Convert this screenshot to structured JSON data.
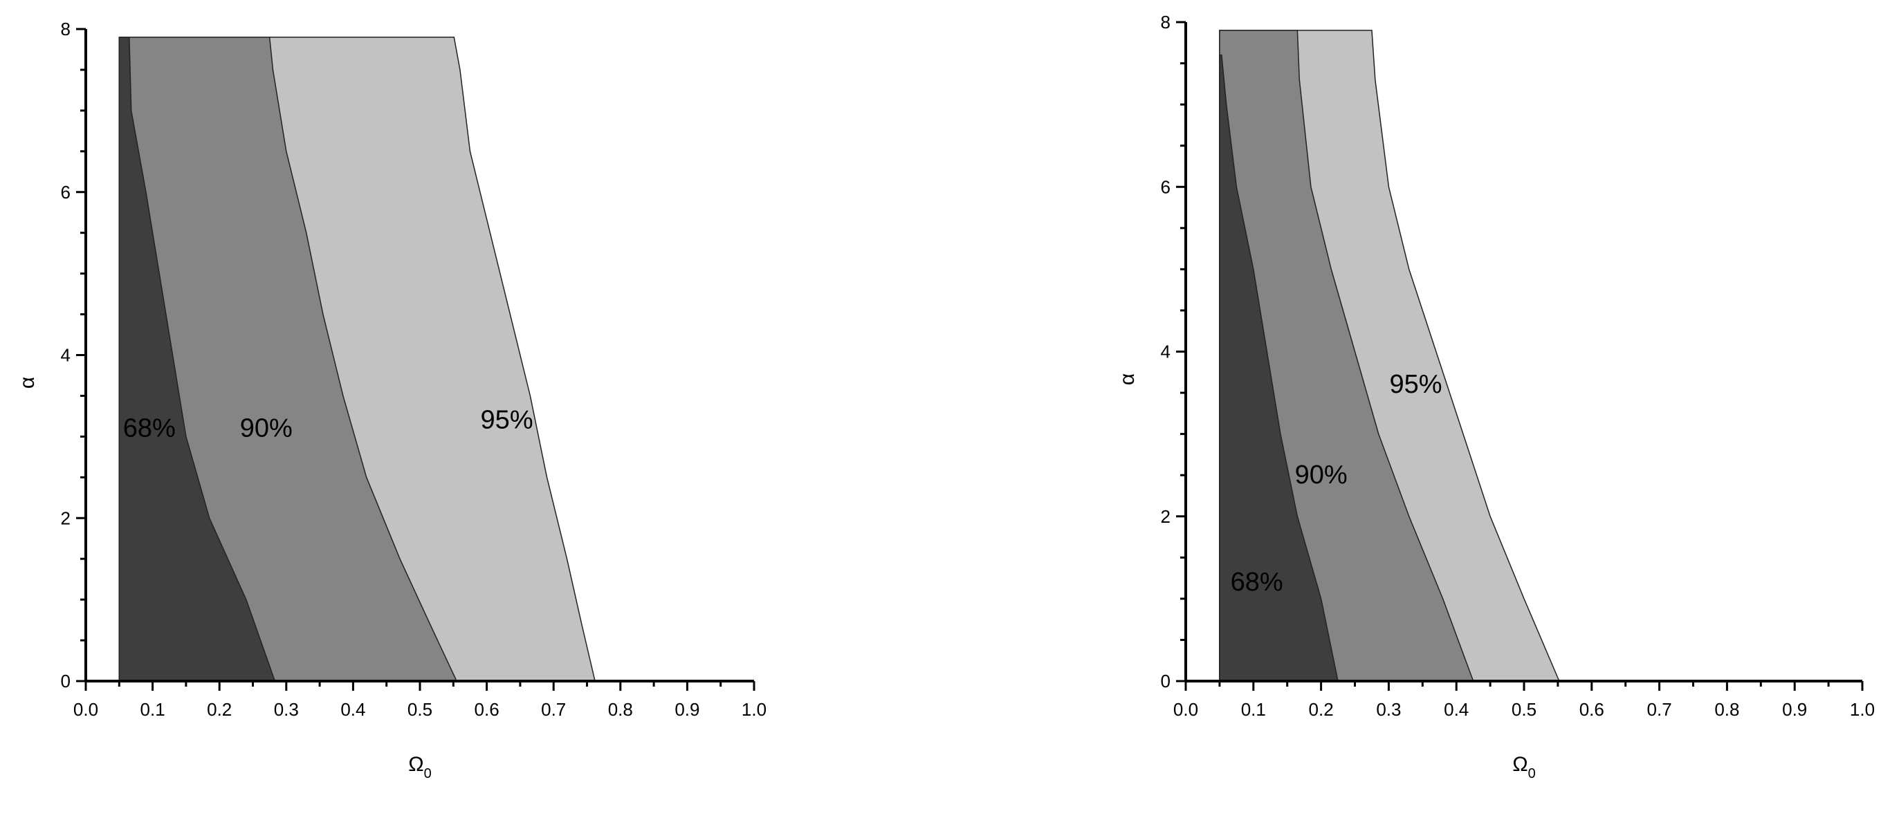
{
  "chart_data": [
    {
      "type": "area",
      "xlabel": "Ω",
      "xlabel_sub": "0",
      "ylabel": "α",
      "xlim": [
        0.0,
        1.0
      ],
      "ylim": [
        0,
        8
      ],
      "xticks": [
        "0.0",
        "0.1",
        "0.2",
        "0.3",
        "0.4",
        "0.5",
        "0.6",
        "0.7",
        "0.8",
        "0.9",
        "1.0"
      ],
      "yticks": [
        "0",
        "2",
        "4",
        "6",
        "8"
      ],
      "x_left_edge": 0.05,
      "regions": [
        {
          "name": "95%",
          "color": "#c2c2c2",
          "label_at": [
            0.63,
            3.1
          ],
          "right_boundary": [
            [
              0.551,
              7.9
            ],
            [
              0.56,
              7.5
            ],
            [
              0.575,
              6.5
            ],
            [
              0.605,
              5.5
            ],
            [
              0.635,
              4.5
            ],
            [
              0.665,
              3.5
            ],
            [
              0.69,
              2.5
            ],
            [
              0.72,
              1.5
            ],
            [
              0.742,
              0.7
            ],
            [
              0.762,
              0
            ]
          ]
        },
        {
          "name": "90%",
          "color": "#858585",
          "label_at": [
            0.27,
            3.0
          ],
          "right_boundary": [
            [
              0.275,
              7.9
            ],
            [
              0.28,
              7.5
            ],
            [
              0.3,
              6.5
            ],
            [
              0.33,
              5.5
            ],
            [
              0.355,
              4.5
            ],
            [
              0.385,
              3.5
            ],
            [
              0.42,
              2.5
            ],
            [
              0.47,
              1.5
            ],
            [
              0.515,
              0.7
            ],
            [
              0.555,
              0
            ]
          ]
        },
        {
          "name": "68%",
          "color": "#3e3e3e",
          "label_at": [
            0.095,
            3.0
          ],
          "right_boundary": [
            [
              0.065,
              7.9
            ],
            [
              0.068,
              7.0
            ],
            [
              0.09,
              6.0
            ],
            [
              0.11,
              5.0
            ],
            [
              0.13,
              4.0
            ],
            [
              0.15,
              3.0
            ],
            [
              0.185,
              2.0
            ],
            [
              0.24,
              1.0
            ],
            [
              0.283,
              0
            ]
          ]
        }
      ]
    },
    {
      "type": "area",
      "xlabel": "Ω",
      "xlabel_sub": "0",
      "ylabel": "α",
      "xlim": [
        0.0,
        1.0
      ],
      "ylim": [
        0,
        8
      ],
      "xticks": [
        "0.0",
        "0.1",
        "0.2",
        "0.3",
        "0.4",
        "0.5",
        "0.6",
        "0.7",
        "0.8",
        "0.9",
        "1.0"
      ],
      "yticks": [
        "0",
        "2",
        "4",
        "6",
        "8"
      ],
      "x_left_edge": 0.05,
      "regions": [
        {
          "name": "95%",
          "color": "#c2c2c2",
          "label_at": [
            0.34,
            3.5
          ],
          "right_boundary": [
            [
              0.275,
              7.9
            ],
            [
              0.28,
              7.3
            ],
            [
              0.3,
              6.0
            ],
            [
              0.33,
              5.0
            ],
            [
              0.37,
              4.0
            ],
            [
              0.41,
              3.0
            ],
            [
              0.45,
              2.0
            ],
            [
              0.5,
              1.0
            ],
            [
              0.552,
              0
            ]
          ]
        },
        {
          "name": "90%",
          "color": "#858585",
          "label_at": [
            0.2,
            2.4
          ],
          "right_boundary": [
            [
              0.165,
              7.9
            ],
            [
              0.168,
              7.3
            ],
            [
              0.185,
              6.0
            ],
            [
              0.215,
              5.0
            ],
            [
              0.25,
              4.0
            ],
            [
              0.285,
              3.0
            ],
            [
              0.33,
              2.0
            ],
            [
              0.38,
              1.0
            ],
            [
              0.425,
              0
            ]
          ]
        },
        {
          "name": "68%",
          "color": "#3e3e3e",
          "label_at": [
            0.105,
            1.1
          ],
          "right_boundary": [
            [
              0.053,
              7.6
            ],
            [
              0.06,
              7.0
            ],
            [
              0.075,
              6.0
            ],
            [
              0.1,
              5.0
            ],
            [
              0.12,
              4.0
            ],
            [
              0.14,
              3.0
            ],
            [
              0.165,
              2.0
            ],
            [
              0.2,
              1.0
            ],
            [
              0.225,
              0
            ]
          ]
        }
      ]
    }
  ]
}
